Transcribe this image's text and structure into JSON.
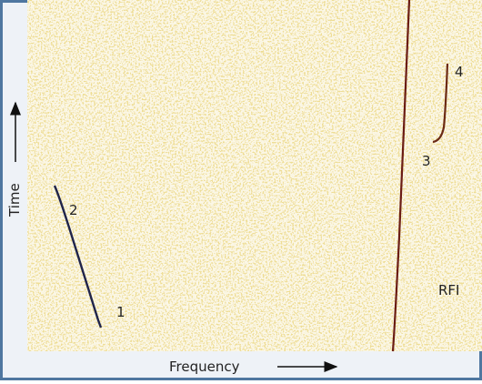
{
  "axes": {
    "y_label": "Time",
    "x_label": "Frequency"
  },
  "markers": [
    "1",
    "2",
    "3",
    "4"
  ],
  "rfi_label": "RFI"
}
